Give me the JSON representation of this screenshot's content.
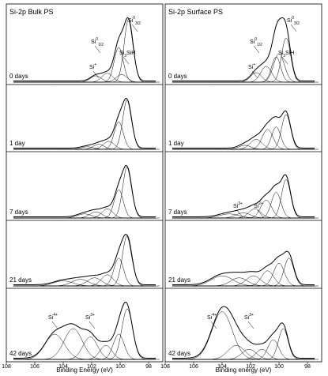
{
  "chart_data": [
    {
      "type": "line",
      "title": "Si-2p Bulk PS",
      "xlabel": "Binding Energy (eV)",
      "xlim": [
        108,
        97
      ],
      "xticks": [
        "108",
        "106",
        "104",
        "102",
        "100",
        "98"
      ],
      "panels": [
        {
          "label": "0 days",
          "annotations": [
            {
              "text": "Si",
              "sup": "0",
              "sub": "3/2"
            },
            {
              "text": "Si",
              "sup": "0",
              "sub": "1/2"
            },
            {
              "text": "Si",
              "sup": "+",
              "sub": ""
            },
            {
              "text": "Si",
              "sup": "",
              "sub": "3",
              "suffix": "SiH"
            }
          ],
          "components": [
            {
              "center": 99.4,
              "height": 1.0,
              "fwhm": 0.75
            },
            {
              "center": 100.1,
              "height": 0.55,
              "fwhm": 0.75
            },
            {
              "center": 100.9,
              "height": 0.14,
              "fwhm": 0.9
            },
            {
              "center": 101.7,
              "height": 0.1,
              "fwhm": 0.9
            },
            {
              "center": 99.9,
              "height": 0.12,
              "fwhm": 0.9
            }
          ]
        },
        {
          "label": "1 day",
          "annotations": [],
          "components": [
            {
              "center": 99.5,
              "height": 1.0,
              "fwhm": 0.75
            },
            {
              "center": 100.1,
              "height": 0.55,
              "fwhm": 0.75
            },
            {
              "center": 100.8,
              "height": 0.16,
              "fwhm": 0.9
            },
            {
              "center": 101.5,
              "height": 0.1,
              "fwhm": 0.9
            },
            {
              "center": 102.3,
              "height": 0.05,
              "fwhm": 1.0
            }
          ]
        },
        {
          "label": "7 days",
          "annotations": [],
          "components": [
            {
              "center": 99.5,
              "height": 1.0,
              "fwhm": 0.75
            },
            {
              "center": 100.1,
              "height": 0.55,
              "fwhm": 0.75
            },
            {
              "center": 100.9,
              "height": 0.18,
              "fwhm": 0.9
            },
            {
              "center": 101.7,
              "height": 0.12,
              "fwhm": 1.0
            },
            {
              "center": 102.5,
              "height": 0.08,
              "fwhm": 1.2
            }
          ]
        },
        {
          "label": "21 days",
          "annotations": [],
          "components": [
            {
              "center": 99.5,
              "height": 1.0,
              "fwhm": 0.8
            },
            {
              "center": 100.1,
              "height": 0.55,
              "fwhm": 0.8
            },
            {
              "center": 100.9,
              "height": 0.22,
              "fwhm": 1.0
            },
            {
              "center": 101.8,
              "height": 0.16,
              "fwhm": 1.2
            },
            {
              "center": 102.8,
              "height": 0.13,
              "fwhm": 1.4
            },
            {
              "center": 104.0,
              "height": 0.1,
              "fwhm": 1.6
            }
          ]
        },
        {
          "label": "42 days",
          "annotations": [
            {
              "text": "Si",
              "sup": "4+",
              "sub": ""
            },
            {
              "text": "Si",
              "sup": "3+",
              "sub": ""
            }
          ],
          "components": [
            {
              "center": 99.5,
              "height": 0.9,
              "fwhm": 0.9
            },
            {
              "center": 100.1,
              "height": 0.45,
              "fwhm": 0.9
            },
            {
              "center": 101.0,
              "height": 0.25,
              "fwhm": 1.0
            },
            {
              "center": 102.1,
              "height": 0.4,
              "fwhm": 1.2
            },
            {
              "center": 103.3,
              "height": 0.55,
              "fwhm": 1.5
            },
            {
              "center": 104.6,
              "height": 0.45,
              "fwhm": 1.6
            }
          ]
        }
      ]
    },
    {
      "type": "line",
      "title": "Si-2p Surface PS",
      "xlabel": "Binding energy (eV)",
      "xlim": [
        108,
        97
      ],
      "xticks": [
        "108",
        "106",
        "104",
        "102",
        "100",
        "98"
      ],
      "panels": [
        {
          "label": "0 days",
          "annotations": [
            {
              "text": "Si",
              "sup": "0",
              "sub": "3/2"
            },
            {
              "text": "Si",
              "sup": "0",
              "sub": "1/2"
            },
            {
              "text": "Si",
              "sup": "+",
              "sub": ""
            },
            {
              "text": "Si",
              "sup": "",
              "sub": "3",
              "suffix": "SiH"
            }
          ],
          "components": [
            {
              "center": 99.5,
              "height": 0.7,
              "fwhm": 0.75
            },
            {
              "center": 100.2,
              "height": 0.4,
              "fwhm": 0.75
            },
            {
              "center": 100.9,
              "height": 0.25,
              "fwhm": 0.9
            },
            {
              "center": 101.6,
              "height": 0.15,
              "fwhm": 0.9
            },
            {
              "center": 100.0,
              "height": 0.45,
              "fwhm": 0.9
            }
          ]
        },
        {
          "label": "1 day",
          "annotations": [],
          "components": [
            {
              "center": 99.5,
              "height": 0.7,
              "fwhm": 0.75
            },
            {
              "center": 100.2,
              "height": 0.45,
              "fwhm": 0.75
            },
            {
              "center": 100.8,
              "height": 0.4,
              "fwhm": 0.9
            },
            {
              "center": 101.6,
              "height": 0.2,
              "fwhm": 1.0
            },
            {
              "center": 102.4,
              "height": 0.08,
              "fwhm": 1.0
            }
          ]
        },
        {
          "label": "7 days",
          "annotations": [
            {
              "text": "Si",
              "sup": "3+",
              "sub": ""
            },
            {
              "text": "Si",
              "sup": "2+",
              "sub": ""
            }
          ],
          "components": [
            {
              "center": 99.5,
              "height": 0.75,
              "fwhm": 0.75
            },
            {
              "center": 100.2,
              "height": 0.5,
              "fwhm": 0.8
            },
            {
              "center": 100.9,
              "height": 0.35,
              "fwhm": 0.9
            },
            {
              "center": 101.7,
              "height": 0.18,
              "fwhm": 1.0
            },
            {
              "center": 102.5,
              "height": 0.1,
              "fwhm": 1.2
            },
            {
              "center": 103.5,
              "height": 0.08,
              "fwhm": 1.6
            }
          ]
        },
        {
          "label": "21 days",
          "annotations": [],
          "components": [
            {
              "center": 99.3,
              "height": 0.55,
              "fwhm": 0.8
            },
            {
              "center": 100.0,
              "height": 0.45,
              "fwhm": 0.9
            },
            {
              "center": 100.8,
              "height": 0.3,
              "fwhm": 1.0
            },
            {
              "center": 101.8,
              "height": 0.2,
              "fwhm": 1.2
            },
            {
              "center": 102.8,
              "height": 0.16,
              "fwhm": 1.4
            },
            {
              "center": 104.0,
              "height": 0.2,
              "fwhm": 1.8
            }
          ]
        },
        {
          "label": "42 days",
          "annotations": [
            {
              "text": "Si",
              "sup": "4+",
              "sub": ""
            },
            {
              "text": "Si",
              "sup": "3+",
              "sub": ""
            }
          ],
          "components": [
            {
              "center": 99.7,
              "height": 0.55,
              "fwhm": 0.8
            },
            {
              "center": 100.4,
              "height": 0.35,
              "fwhm": 0.9
            },
            {
              "center": 101.2,
              "height": 0.18,
              "fwhm": 1.0
            },
            {
              "center": 102.1,
              "height": 0.18,
              "fwhm": 1.2
            },
            {
              "center": 103.0,
              "height": 0.25,
              "fwhm": 1.4
            },
            {
              "center": 104.0,
              "height": 0.85,
              "fwhm": 1.7
            }
          ]
        }
      ]
    }
  ]
}
